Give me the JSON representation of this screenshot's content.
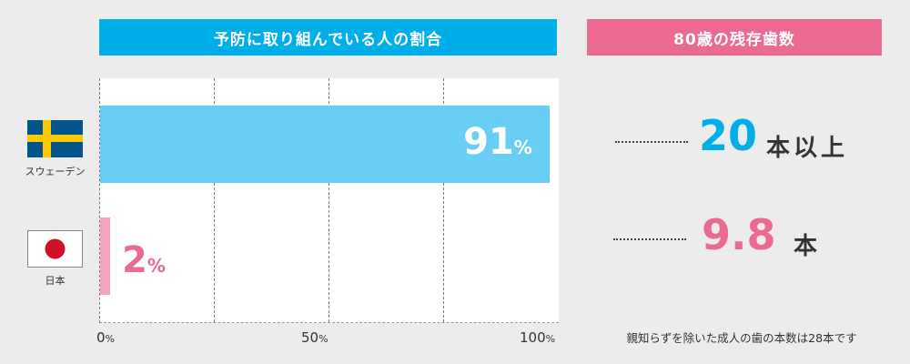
{
  "colors": {
    "blue": "#00aeea",
    "pink": "#ea6a92",
    "bar_blue": "#69cef4",
    "bar_pink": "#f2a5bf"
  },
  "left_title": "予防に取り組んでいる人の割合",
  "right_title": "80歳の残存歯数",
  "chart_data": {
    "type": "bar",
    "orientation": "horizontal",
    "title": "予防に取り組んでいる人の割合",
    "categories": [
      "スウェーデン",
      "日本"
    ],
    "values": [
      91,
      2
    ],
    "value_labels": [
      {
        "num": "91",
        "unit": "%"
      },
      {
        "num": "2",
        "unit": "%"
      }
    ],
    "xlim": [
      0,
      100
    ],
    "ticks": [
      {
        "num": "0",
        "unit": "%"
      },
      {
        "num": "50",
        "unit": "%"
      },
      {
        "num": "100",
        "unit": "%"
      }
    ],
    "grid": true
  },
  "teeth": [
    {
      "value": "20",
      "unit": "本以上"
    },
    {
      "value": "9.8",
      "unit": "本"
    }
  ],
  "note": "親知らずを除いた成人の歯の本数は28本です"
}
